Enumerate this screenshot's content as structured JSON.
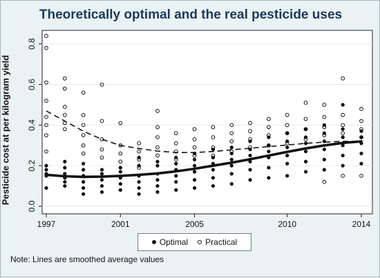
{
  "chart_data": {
    "type": "scatter",
    "title": "Theoretically optimal and the real pesticide uses",
    "xlabel": "",
    "ylabel": "Pesticide cost at per kilogram yield",
    "xlim": [
      1997,
      2014
    ],
    "ylim": [
      0,
      0.85
    ],
    "x_ticks": [
      1997,
      2001,
      2005,
      2010,
      2014
    ],
    "y_ticks": [
      "0.0",
      "0.2",
      "0.4",
      "0.6",
      "0.8"
    ],
    "y_tick_values": [
      0,
      0.2,
      0.4,
      0.6,
      0.8
    ],
    "grid": true,
    "legend_position": "bottom",
    "series": [
      {
        "name": "Optimal",
        "marker": "filled-circle",
        "color": "#111111",
        "points": [
          [
            1997,
            0.09
          ],
          [
            1997,
            0.15
          ],
          [
            1997,
            0.16
          ],
          [
            1997,
            0.18
          ],
          [
            1997,
            0.2
          ],
          [
            1998,
            0.1
          ],
          [
            1998,
            0.12
          ],
          [
            1998,
            0.14
          ],
          [
            1998,
            0.16
          ],
          [
            1998,
            0.19
          ],
          [
            1998,
            0.22
          ],
          [
            1999,
            0.06
          ],
          [
            1999,
            0.09
          ],
          [
            1999,
            0.12
          ],
          [
            1999,
            0.15
          ],
          [
            1999,
            0.18
          ],
          [
            1999,
            0.21
          ],
          [
            2000,
            0.07
          ],
          [
            2000,
            0.1
          ],
          [
            2000,
            0.13
          ],
          [
            2000,
            0.16
          ],
          [
            2000,
            0.18
          ],
          [
            2001,
            0.08
          ],
          [
            2001,
            0.11
          ],
          [
            2001,
            0.14
          ],
          [
            2001,
            0.17
          ],
          [
            2001,
            0.19
          ],
          [
            2002,
            0.06
          ],
          [
            2002,
            0.09
          ],
          [
            2002,
            0.12
          ],
          [
            2002,
            0.15
          ],
          [
            2002,
            0.2
          ],
          [
            2002,
            0.24
          ],
          [
            2003,
            0.07
          ],
          [
            2003,
            0.1
          ],
          [
            2003,
            0.13
          ],
          [
            2003,
            0.16
          ],
          [
            2003,
            0.2
          ],
          [
            2003,
            0.22
          ],
          [
            2004,
            0.08
          ],
          [
            2004,
            0.12
          ],
          [
            2004,
            0.15
          ],
          [
            2004,
            0.18
          ],
          [
            2004,
            0.21
          ],
          [
            2004,
            0.24
          ],
          [
            2005,
            0.09
          ],
          [
            2005,
            0.13
          ],
          [
            2005,
            0.17
          ],
          [
            2005,
            0.2
          ],
          [
            2005,
            0.23
          ],
          [
            2005,
            0.26
          ],
          [
            2006,
            0.1
          ],
          [
            2006,
            0.14
          ],
          [
            2006,
            0.18
          ],
          [
            2006,
            0.21
          ],
          [
            2006,
            0.24
          ],
          [
            2006,
            0.28
          ],
          [
            2007,
            0.11
          ],
          [
            2007,
            0.16
          ],
          [
            2007,
            0.2
          ],
          [
            2007,
            0.23
          ],
          [
            2007,
            0.26
          ],
          [
            2007,
            0.29
          ],
          [
            2008,
            0.13
          ],
          [
            2008,
            0.18
          ],
          [
            2008,
            0.22
          ],
          [
            2008,
            0.25
          ],
          [
            2008,
            0.28
          ],
          [
            2008,
            0.32
          ],
          [
            2009,
            0.14
          ],
          [
            2009,
            0.19
          ],
          [
            2009,
            0.24
          ],
          [
            2009,
            0.27
          ],
          [
            2009,
            0.3
          ],
          [
            2009,
            0.34
          ],
          [
            2010,
            0.15
          ],
          [
            2010,
            0.21
          ],
          [
            2010,
            0.25
          ],
          [
            2010,
            0.29
          ],
          [
            2010,
            0.32
          ],
          [
            2010,
            0.36
          ],
          [
            2011,
            0.17
          ],
          [
            2011,
            0.22
          ],
          [
            2011,
            0.27
          ],
          [
            2011,
            0.31
          ],
          [
            2011,
            0.34
          ],
          [
            2011,
            0.38
          ],
          [
            2012,
            0.18
          ],
          [
            2012,
            0.23
          ],
          [
            2012,
            0.28
          ],
          [
            2012,
            0.32
          ],
          [
            2012,
            0.36
          ],
          [
            2012,
            0.4
          ],
          [
            2013,
            0.2
          ],
          [
            2013,
            0.25
          ],
          [
            2013,
            0.3
          ],
          [
            2013,
            0.34
          ],
          [
            2013,
            0.38
          ],
          [
            2013,
            0.5
          ],
          [
            2014,
            0.21
          ],
          [
            2014,
            0.26
          ],
          [
            2014,
            0.31
          ],
          [
            2014,
            0.34
          ],
          [
            2014,
            0.37
          ]
        ]
      },
      {
        "name": "Practical",
        "marker": "hollow-circle",
        "color": "#111111",
        "points": [
          [
            1997,
            0.84
          ],
          [
            1997,
            0.78
          ],
          [
            1997,
            0.61
          ],
          [
            1997,
            0.52
          ],
          [
            1997,
            0.44
          ],
          [
            1997,
            0.4
          ],
          [
            1997,
            0.35
          ],
          [
            1997,
            0.27
          ],
          [
            1998,
            0.63
          ],
          [
            1998,
            0.58
          ],
          [
            1998,
            0.49
          ],
          [
            1998,
            0.45
          ],
          [
            1998,
            0.41
          ],
          [
            1998,
            0.38
          ],
          [
            1999,
            0.56
          ],
          [
            1999,
            0.45
          ],
          [
            1999,
            0.4
          ],
          [
            1999,
            0.35
          ],
          [
            1999,
            0.3
          ],
          [
            1999,
            0.26
          ],
          [
            2000,
            0.6
          ],
          [
            2000,
            0.42
          ],
          [
            2000,
            0.33
          ],
          [
            2000,
            0.28
          ],
          [
            2000,
            0.24
          ],
          [
            2001,
            0.41
          ],
          [
            2001,
            0.3
          ],
          [
            2001,
            0.26
          ],
          [
            2001,
            0.22
          ],
          [
            2002,
            0.31
          ],
          [
            2002,
            0.27
          ],
          [
            2002,
            0.23
          ],
          [
            2002,
            0.19
          ],
          [
            2003,
            0.47
          ],
          [
            2003,
            0.39
          ],
          [
            2003,
            0.34
          ],
          [
            2003,
            0.29
          ],
          [
            2003,
            0.25
          ],
          [
            2004,
            0.36
          ],
          [
            2004,
            0.31
          ],
          [
            2004,
            0.27
          ],
          [
            2004,
            0.23
          ],
          [
            2005,
            0.38
          ],
          [
            2005,
            0.33
          ],
          [
            2005,
            0.29
          ],
          [
            2005,
            0.25
          ],
          [
            2006,
            0.39
          ],
          [
            2006,
            0.34
          ],
          [
            2006,
            0.29
          ],
          [
            2006,
            0.25
          ],
          [
            2007,
            0.4
          ],
          [
            2007,
            0.36
          ],
          [
            2007,
            0.32
          ],
          [
            2007,
            0.27
          ],
          [
            2008,
            0.41
          ],
          [
            2008,
            0.37
          ],
          [
            2008,
            0.33
          ],
          [
            2008,
            0.29
          ],
          [
            2009,
            0.43
          ],
          [
            2009,
            0.39
          ],
          [
            2009,
            0.35
          ],
          [
            2009,
            0.3
          ],
          [
            2010,
            0.45
          ],
          [
            2010,
            0.4
          ],
          [
            2010,
            0.36
          ],
          [
            2010,
            0.31
          ],
          [
            2011,
            0.51
          ],
          [
            2011,
            0.43
          ],
          [
            2011,
            0.38
          ],
          [
            2011,
            0.33
          ],
          [
            2012,
            0.5
          ],
          [
            2012,
            0.44
          ],
          [
            2012,
            0.39
          ],
          [
            2012,
            0.35
          ],
          [
            2012,
            0.12
          ],
          [
            2013,
            0.63
          ],
          [
            2013,
            0.45
          ],
          [
            2013,
            0.4
          ],
          [
            2013,
            0.36
          ],
          [
            2013,
            0.15
          ],
          [
            2014,
            0.48
          ],
          [
            2014,
            0.42
          ],
          [
            2014,
            0.38
          ],
          [
            2014,
            0.34
          ],
          [
            2014,
            0.15
          ]
        ]
      }
    ],
    "smoothed_lines": [
      {
        "name": "Optimal",
        "style": "solid-thick",
        "x": [
          1997,
          1998,
          1999,
          2000,
          2001,
          2002,
          2003,
          2004,
          2005,
          2006,
          2007,
          2008,
          2009,
          2010,
          2011,
          2012,
          2013,
          2014
        ],
        "y": [
          0.155,
          0.148,
          0.145,
          0.146,
          0.15,
          0.155,
          0.162,
          0.172,
          0.185,
          0.2,
          0.215,
          0.232,
          0.25,
          0.268,
          0.285,
          0.3,
          0.312,
          0.32
        ]
      },
      {
        "name": "Practical",
        "style": "dashed",
        "x": [
          1997,
          1998,
          1999,
          2000,
          2001,
          2002,
          2003,
          2004,
          2005,
          2006,
          2007,
          2008,
          2009,
          2010,
          2011,
          2012,
          2013,
          2014
        ],
        "y": [
          0.47,
          0.42,
          0.37,
          0.33,
          0.3,
          0.285,
          0.272,
          0.265,
          0.265,
          0.27,
          0.278,
          0.286,
          0.294,
          0.302,
          0.31,
          0.316,
          0.32,
          0.32
        ]
      }
    ],
    "note": "Note: Lines are smoothed average values"
  }
}
